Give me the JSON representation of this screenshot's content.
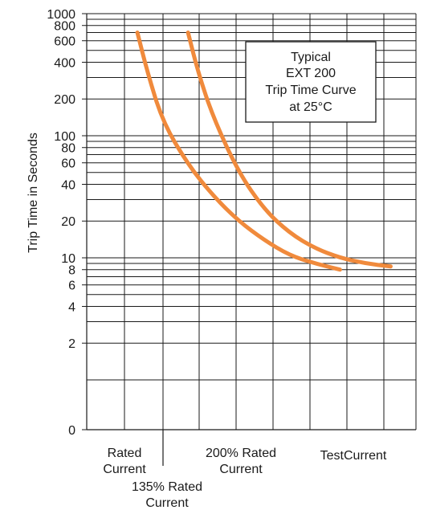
{
  "chart_data": {
    "type": "line",
    "ylabel": "Trip Time in Seconds",
    "yscale": "log",
    "ylim": [
      0,
      1000
    ],
    "y_ticks": [
      {
        "value": 1000,
        "label": "1000"
      },
      {
        "value": 800,
        "label": "800"
      },
      {
        "value": 600,
        "label": "600"
      },
      {
        "value": 400,
        "label": "400"
      },
      {
        "value": 200,
        "label": "200"
      },
      {
        "value": 100,
        "label": "100"
      },
      {
        "value": 80,
        "label": "80"
      },
      {
        "value": 60,
        "label": "60"
      },
      {
        "value": 40,
        "label": "40"
      },
      {
        "value": 20,
        "label": "20"
      },
      {
        "value": 10,
        "label": "10"
      },
      {
        "value": 8,
        "label": "8"
      },
      {
        "value": 6,
        "label": "6"
      },
      {
        "value": 4,
        "label": "4"
      },
      {
        "value": 2,
        "label": "2"
      },
      {
        "value": 0,
        "label": "0"
      }
    ],
    "x_labels": [
      {
        "lines": [
          "Rated",
          "Current"
        ],
        "position": 1
      },
      {
        "lines": [
          "135% Rated",
          "Current"
        ],
        "position": 2
      },
      {
        "lines": [
          "200% Rated",
          "Current"
        ],
        "position": 3
      },
      {
        "lines": [
          "TestCurrent"
        ],
        "position": 4.6
      }
    ],
    "x_range": [
      0,
      6.5
    ],
    "grid": true,
    "annotation": {
      "lines": [
        "Typical",
        "EXT 200",
        "Trip Time Curve",
        "at 25°C"
      ],
      "placement": "top-right"
    },
    "series": [
      {
        "values": [
          {
            "x": 1.0,
            "y": 700
          },
          {
            "x": 1.2,
            "y": 330
          },
          {
            "x": 1.5,
            "y": 130
          },
          {
            "x": 2.0,
            "y": 58
          },
          {
            "x": 2.5,
            "y": 32
          },
          {
            "x": 3.0,
            "y": 20
          },
          {
            "x": 3.5,
            "y": 14
          },
          {
            "x": 4.0,
            "y": 10.5
          },
          {
            "x": 4.5,
            "y": 9.0
          },
          {
            "x": 5.0,
            "y": 8.0
          }
        ]
      },
      {
        "values": [
          {
            "x": 2.0,
            "y": 700
          },
          {
            "x": 2.2,
            "y": 330
          },
          {
            "x": 2.5,
            "y": 140
          },
          {
            "x": 3.0,
            "y": 50
          },
          {
            "x": 3.5,
            "y": 25
          },
          {
            "x": 4.0,
            "y": 16
          },
          {
            "x": 4.5,
            "y": 12
          },
          {
            "x": 5.0,
            "y": 10
          },
          {
            "x": 5.5,
            "y": 9.0
          },
          {
            "x": 6.0,
            "y": 8.5
          }
        ]
      }
    ],
    "colors": {
      "curve": "#f08a3c",
      "grid": "#1a1a1a",
      "text": "#1a1a1a"
    }
  }
}
